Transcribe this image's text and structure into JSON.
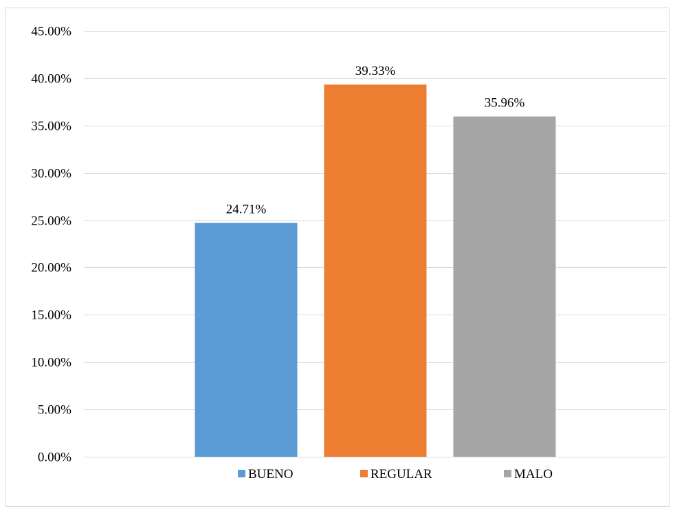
{
  "chart_data": {
    "type": "bar",
    "categories": [
      "BUENO",
      "REGULAR",
      "MALO"
    ],
    "values": [
      24.71,
      39.33,
      35.96
    ],
    "data_labels": [
      "24.71%",
      "39.33%",
      "35.96%"
    ],
    "colors": [
      "#5b9bd5",
      "#ed7d31",
      "#a5a5a5"
    ],
    "title": "",
    "xlabel": "",
    "ylabel": "",
    "ylim": [
      0,
      45
    ],
    "y_ticks": [
      0,
      5,
      10,
      15,
      20,
      25,
      30,
      35,
      40,
      45
    ],
    "y_tick_labels": [
      "0.00%",
      "5.00%",
      "10.00%",
      "15.00%",
      "20.00%",
      "25.00%",
      "30.00%",
      "35.00%",
      "40.00%",
      "45.00%"
    ],
    "grid": true,
    "legend_placement": "bottom"
  }
}
